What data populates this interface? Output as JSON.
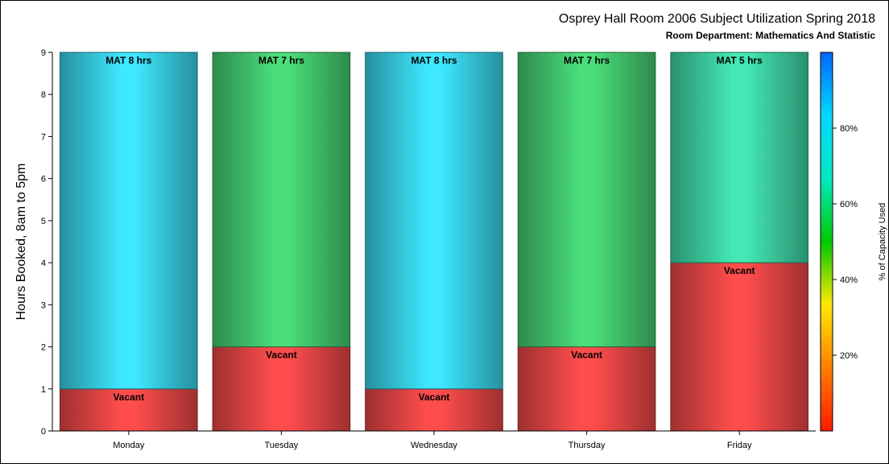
{
  "chart_data": {
    "type": "bar",
    "stacked": true,
    "title": "Osprey Hall Room 2006 Subject Utilization Spring 2018",
    "subtitle": "Room Department:  Mathematics And Statistic",
    "ylabel": "Hours Booked, 8am to 5pm",
    "xlabel": "",
    "ylim": [
      0,
      9
    ],
    "yticks": [
      0,
      1,
      2,
      3,
      4,
      5,
      6,
      7,
      8,
      9
    ],
    "categories": [
      "Monday",
      "Tuesday",
      "Wednesday",
      "Thursday",
      "Friday"
    ],
    "series": [
      {
        "values": [
          1,
          2,
          1,
          2,
          4
        ],
        "labels": [
          "Vacant",
          "Vacant",
          "Vacant",
          "Vacant",
          "Vacant"
        ],
        "colors": [
          "#ff4d4d",
          "#ff4d4d",
          "#ff4d4d",
          "#ff4d4d",
          "#ff4d4d"
        ]
      },
      {
        "values": [
          8,
          7,
          8,
          7,
          5
        ],
        "labels": [
          "MAT 8 hrs",
          "MAT 7 hrs",
          "MAT 8 hrs",
          "MAT 7 hrs",
          "MAT 5 hrs"
        ],
        "colors": [
          "#3ee8ff",
          "#4ade7a",
          "#3ee8ff",
          "#4ade7a",
          "#44e8b4"
        ]
      }
    ],
    "grid": false,
    "colorbar": {
      "label": "% of Capacity Used",
      "ticks": [
        "20%",
        "40%",
        "60%",
        "80%"
      ],
      "tick_values": [
        20,
        40,
        60,
        80
      ],
      "range": [
        0,
        100
      ],
      "colors": [
        "#ff1a00",
        "#ff7f00",
        "#ffe800",
        "#00c800",
        "#00e8c0",
        "#00d8ff",
        "#0066ff"
      ]
    }
  }
}
